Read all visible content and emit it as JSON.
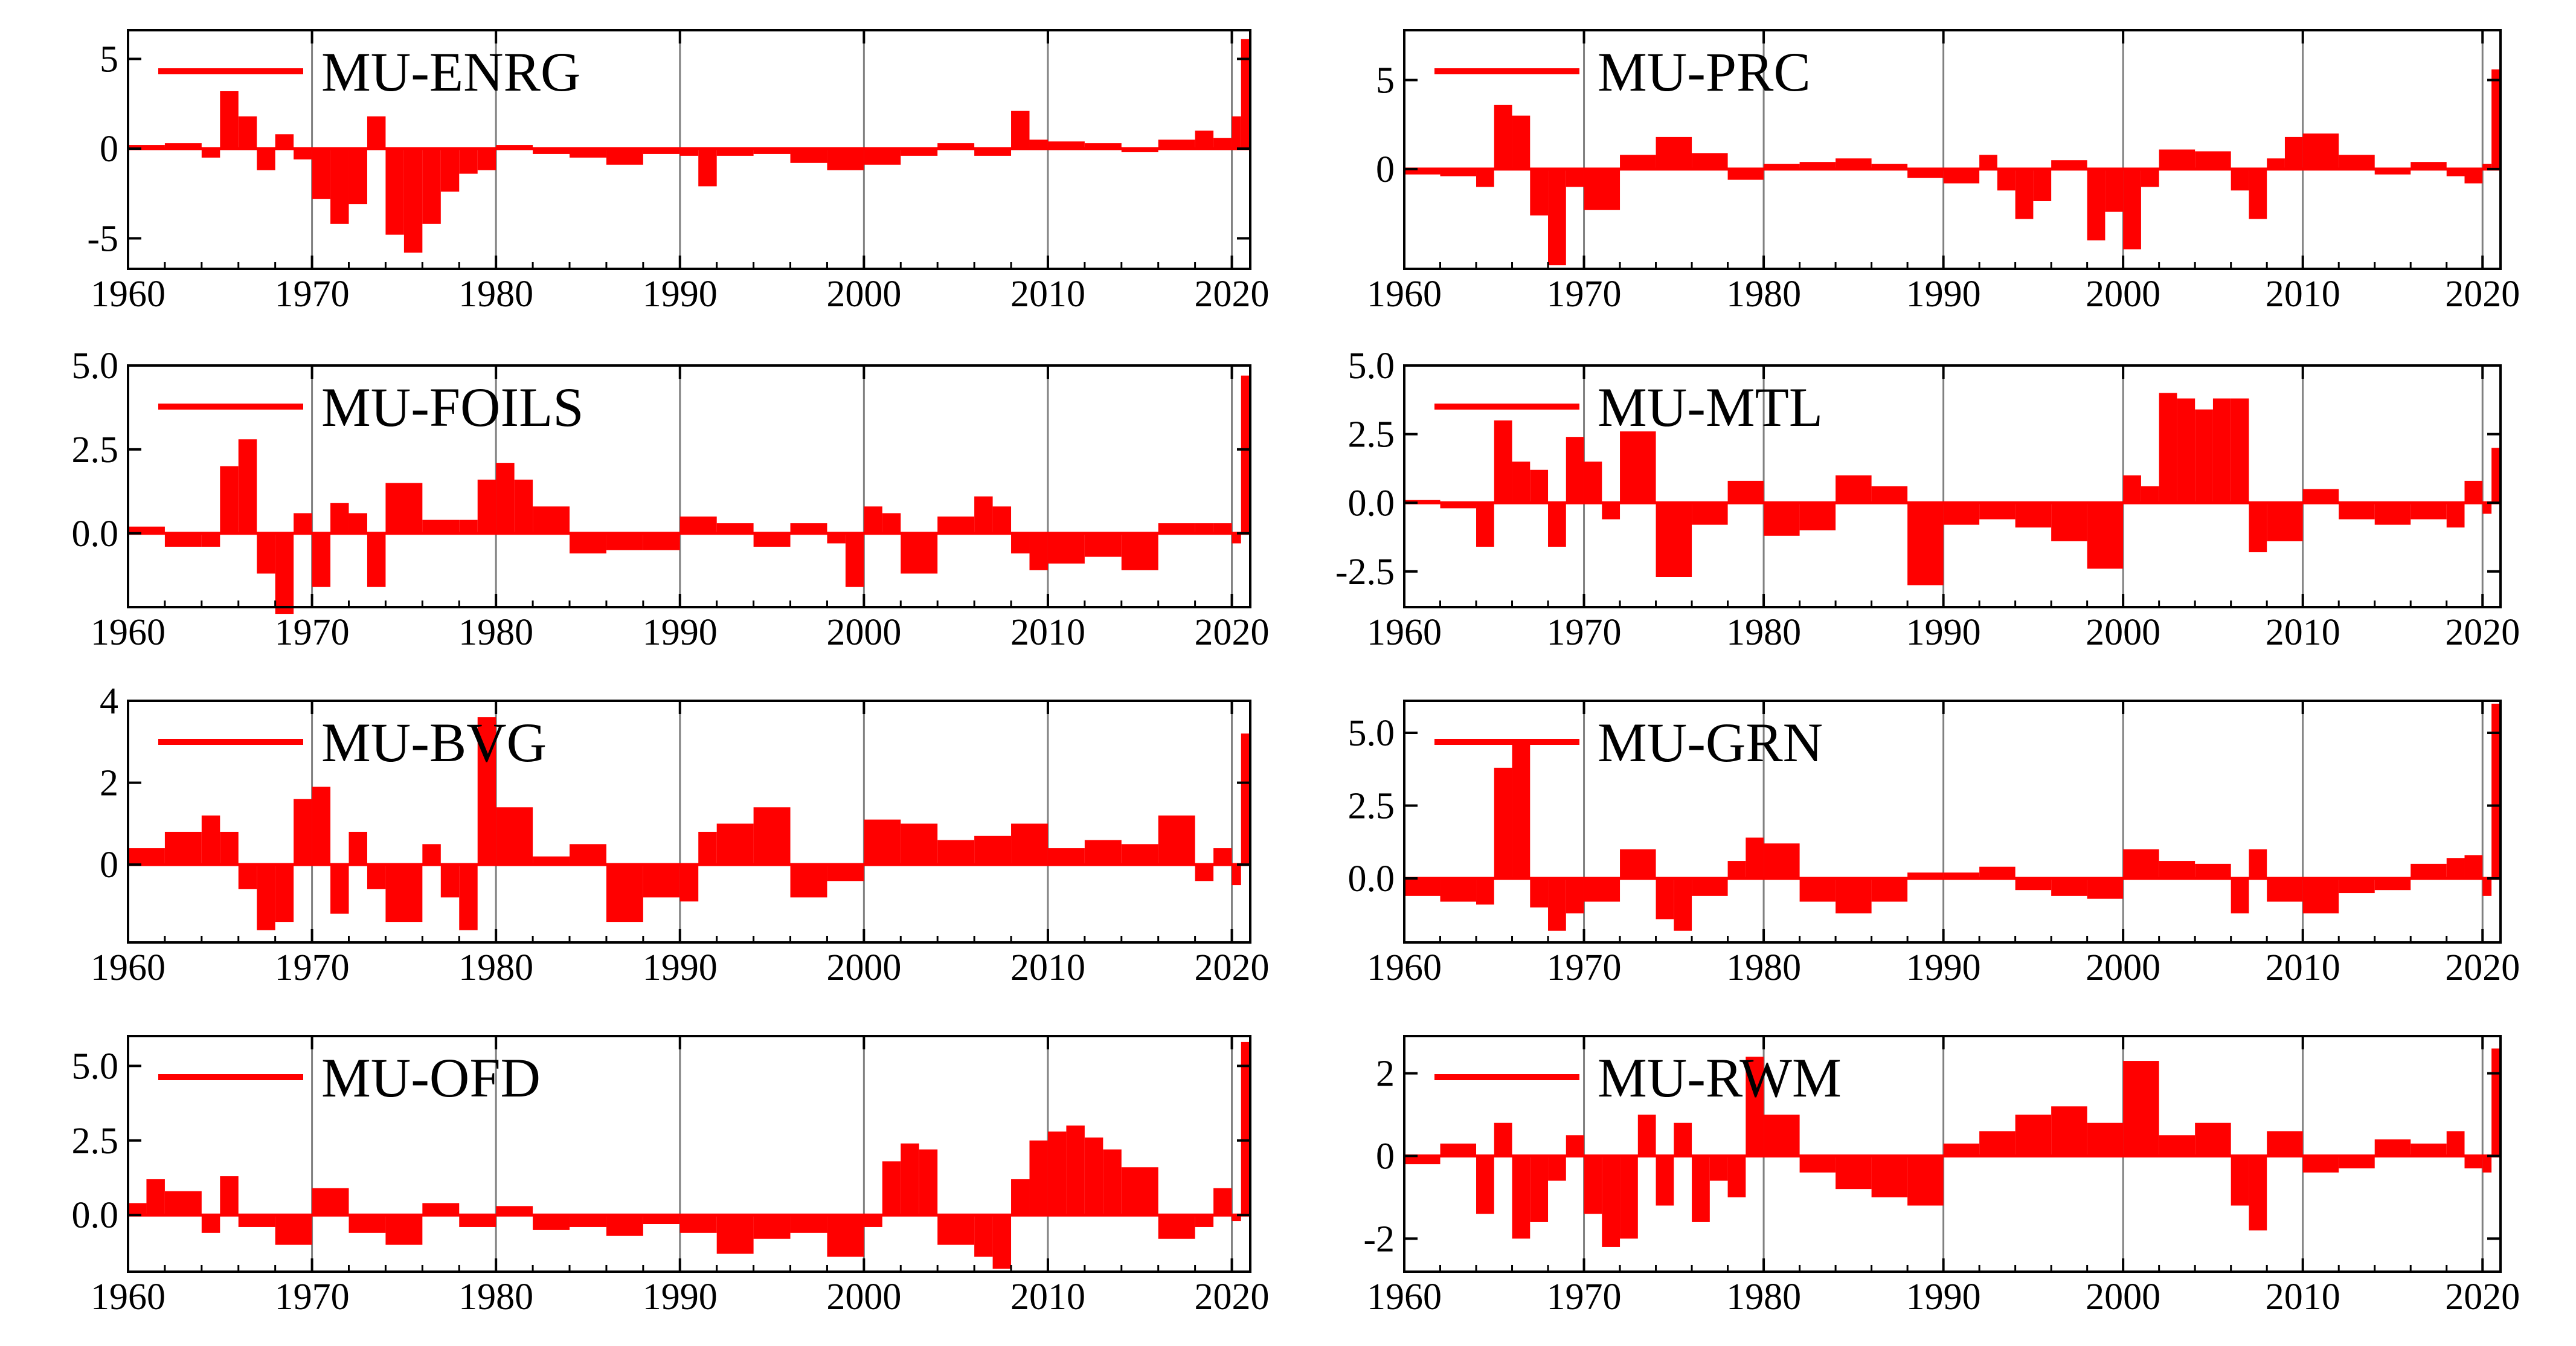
{
  "figure": {
    "description_title": "",
    "background": "#ffffff",
    "series_color": "#ff0000",
    "axis_color": "#000000",
    "gridline_color": "#808080"
  },
  "chart_data": [
    {
      "type": "bar",
      "name": "MU-ENRG",
      "legend": "MU-ENRG",
      "xlim": [
        1960,
        2021
      ],
      "ylim": [
        -6.7,
        6.6
      ],
      "xticks": [
        1960,
        1970,
        1980,
        1990,
        2000,
        2010,
        2020
      ],
      "xtick_labels": [
        "1960",
        "1970",
        "1980",
        "1990",
        "2000",
        "2010",
        "2020"
      ],
      "yticks": [
        5,
        0,
        -5
      ],
      "ytick_labels": [
        "5",
        "0",
        "-5"
      ],
      "gridlines_x": [
        1970,
        1980,
        1990,
        2000,
        2010,
        2020
      ],
      "x": [
        1960,
        1962,
        1964,
        1965,
        1966,
        1967,
        1968,
        1969,
        1970,
        1971,
        1972,
        1973,
        1974,
        1975,
        1976,
        1977,
        1978,
        1979,
        1980,
        1982,
        1984,
        1986,
        1988,
        1990,
        1991,
        1992,
        1994,
        1996,
        1998,
        2000,
        2002,
        2004,
        2006,
        2008,
        2009,
        2010,
        2012,
        2014,
        2016,
        2018,
        2019,
        2020,
        2020.5
      ],
      "values": [
        0.2,
        0.3,
        -0.5,
        3.2,
        1.8,
        -1.2,
        0.8,
        -0.6,
        -2.8,
        -4.2,
        -3.1,
        1.8,
        -4.8,
        -5.8,
        -4.2,
        -2.4,
        -1.4,
        -1.2,
        0.2,
        -0.3,
        -0.5,
        -0.9,
        -0.3,
        -0.4,
        -2.1,
        -0.4,
        -0.3,
        -0.8,
        -1.2,
        -0.9,
        -0.4,
        0.3,
        -0.4,
        2.1,
        0.5,
        0.4,
        0.3,
        -0.2,
        0.5,
        1.0,
        0.6,
        1.8,
        6.1
      ]
    },
    {
      "type": "bar",
      "name": "MU-PRC",
      "legend": "MU-PRC",
      "xlim": [
        1960,
        2021
      ],
      "ylim": [
        -5.6,
        7.8
      ],
      "xticks": [
        1960,
        1970,
        1980,
        1990,
        2000,
        2010,
        2020
      ],
      "xtick_labels": [
        "1960",
        "1970",
        "1980",
        "1990",
        "2000",
        "2010",
        "2020"
      ],
      "yticks": [
        5,
        0
      ],
      "ytick_labels": [
        "5",
        "0"
      ],
      "gridlines_x": [
        1970,
        1980,
        1990,
        2000,
        2010,
        2020
      ],
      "x": [
        1960,
        1962,
        1964,
        1965,
        1966,
        1967,
        1968,
        1969,
        1970,
        1972,
        1974,
        1976,
        1978,
        1980,
        1982,
        1984,
        1986,
        1988,
        1990,
        1992,
        1993,
        1994,
        1995,
        1996,
        1998,
        1999,
        2000,
        2001,
        2002,
        2004,
        2006,
        2007,
        2008,
        2009,
        2010,
        2012,
        2014,
        2016,
        2018,
        2019,
        2020,
        2020.5
      ],
      "values": [
        -0.3,
        -0.4,
        -1.0,
        3.6,
        3.0,
        -2.6,
        -5.4,
        -1.0,
        -2.3,
        0.8,
        1.8,
        0.9,
        -0.6,
        0.3,
        0.4,
        0.6,
        0.3,
        -0.5,
        -0.8,
        0.8,
        -1.2,
        -2.8,
        -1.8,
        0.5,
        -4.0,
        -2.4,
        -4.5,
        -1.0,
        1.1,
        1.0,
        -1.2,
        -2.8,
        0.6,
        1.8,
        2.0,
        0.8,
        -0.3,
        0.4,
        -0.4,
        -0.8,
        0.3,
        5.6
      ]
    },
    {
      "type": "bar",
      "name": "MU-FOILS",
      "legend": "MU-FOILS",
      "xlim": [
        1960,
        2021
      ],
      "ylim": [
        -2.2,
        5.0
      ],
      "xticks": [
        1960,
        1970,
        1980,
        1990,
        2000,
        2010,
        2020
      ],
      "xtick_labels": [
        "1960",
        "1970",
        "1980",
        "1990",
        "2000",
        "2010",
        "2020"
      ],
      "yticks": [
        5.0,
        2.5,
        0.0
      ],
      "ytick_labels": [
        "5.0",
        "2.5",
        "0.0"
      ],
      "gridlines_x": [
        1970,
        1980,
        1990,
        2000,
        2010,
        2020
      ],
      "x": [
        1960,
        1962,
        1964,
        1965,
        1966,
        1967,
        1968,
        1969,
        1970,
        1971,
        1972,
        1973,
        1974,
        1976,
        1978,
        1979,
        1980,
        1981,
        1982,
        1984,
        1986,
        1988,
        1990,
        1992,
        1994,
        1996,
        1998,
        1999,
        2000,
        2001,
        2002,
        2004,
        2006,
        2007,
        2008,
        2009,
        2010,
        2012,
        2014,
        2016,
        2018,
        2019,
        2020,
        2020.5
      ],
      "values": [
        0.2,
        -0.4,
        -0.4,
        2.0,
        2.8,
        -1.2,
        -2.4,
        0.6,
        -1.6,
        0.9,
        0.6,
        -1.6,
        1.5,
        0.4,
        0.4,
        1.6,
        2.1,
        1.6,
        0.8,
        -0.6,
        -0.5,
        -0.5,
        0.5,
        0.3,
        -0.4,
        0.3,
        -0.3,
        -1.6,
        0.8,
        0.6,
        -1.2,
        0.5,
        1.1,
        0.8,
        -0.6,
        -1.1,
        -0.9,
        -0.7,
        -1.1,
        0.3,
        0.3,
        0.3,
        -0.3,
        4.7
      ]
    },
    {
      "type": "bar",
      "name": "MU-MTL",
      "legend": "MU-MTL",
      "xlim": [
        1960,
        2021
      ],
      "ylim": [
        -3.8,
        5.0
      ],
      "xticks": [
        1960,
        1970,
        1980,
        1990,
        2000,
        2010,
        2020
      ],
      "xtick_labels": [
        "1960",
        "1970",
        "1980",
        "1990",
        "2000",
        "2010",
        "2020"
      ],
      "yticks": [
        5.0,
        2.5,
        0.0,
        -2.5
      ],
      "ytick_labels": [
        "5.0",
        "2.5",
        "0.0",
        "-2.5"
      ],
      "gridlines_x": [
        1970,
        1980,
        1990,
        2000,
        2010,
        2020
      ],
      "x": [
        1960,
        1962,
        1964,
        1965,
        1966,
        1967,
        1968,
        1969,
        1970,
        1971,
        1972,
        1974,
        1976,
        1978,
        1980,
        1982,
        1984,
        1986,
        1988,
        1990,
        1992,
        1994,
        1996,
        1998,
        2000,
        2001,
        2002,
        2003,
        2004,
        2005,
        2006,
        2007,
        2008,
        2010,
        2012,
        2014,
        2016,
        2018,
        2019,
        2020,
        2020.5
      ],
      "values": [
        0.1,
        -0.2,
        -1.6,
        3.0,
        1.5,
        1.2,
        -1.6,
        2.4,
        1.5,
        -0.6,
        2.6,
        -2.7,
        -0.8,
        0.8,
        -1.2,
        -1.0,
        1.0,
        0.6,
        -3.0,
        -0.8,
        -0.6,
        -0.9,
        -1.4,
        -2.4,
        1.0,
        0.6,
        4.0,
        3.8,
        3.4,
        3.8,
        3.8,
        -1.8,
        -1.4,
        0.5,
        -0.6,
        -0.8,
        -0.6,
        -0.9,
        0.8,
        -0.4,
        2.0
      ]
    },
    {
      "type": "bar",
      "name": "MU-BVG",
      "legend": "MU-BVG",
      "xlim": [
        1960,
        2021
      ],
      "ylim": [
        -1.9,
        4.0
      ],
      "xticks": [
        1960,
        1970,
        1980,
        1990,
        2000,
        2010,
        2020
      ],
      "xtick_labels": [
        "1960",
        "1970",
        "1980",
        "1990",
        "2000",
        "2010",
        "2020"
      ],
      "yticks": [
        4,
        2,
        0
      ],
      "ytick_labels": [
        "4",
        "2",
        "0"
      ],
      "gridlines_x": [
        1970,
        1980,
        1990,
        2000,
        2010,
        2020
      ],
      "x": [
        1960,
        1962,
        1964,
        1965,
        1966,
        1967,
        1968,
        1969,
        1970,
        1971,
        1972,
        1973,
        1974,
        1976,
        1977,
        1978,
        1979,
        1980,
        1982,
        1984,
        1986,
        1988,
        1990,
        1991,
        1992,
        1994,
        1996,
        1998,
        2000,
        2002,
        2004,
        2006,
        2008,
        2010,
        2012,
        2014,
        2016,
        2018,
        2019,
        2020,
        2020.5
      ],
      "values": [
        0.4,
        0.8,
        1.2,
        0.8,
        -0.6,
        -1.6,
        -1.4,
        1.6,
        1.9,
        -1.2,
        0.8,
        -0.6,
        -1.4,
        0.5,
        -0.8,
        -1.6,
        3.6,
        1.4,
        0.2,
        0.5,
        -1.4,
        -0.8,
        -0.9,
        0.8,
        1.0,
        1.4,
        -0.8,
        -0.4,
        1.1,
        1.0,
        0.6,
        0.7,
        1.0,
        0.4,
        0.6,
        0.5,
        1.2,
        -0.4,
        0.4,
        -0.5,
        3.2
      ]
    },
    {
      "type": "bar",
      "name": "MU-GRN",
      "legend": "MU-GRN",
      "xlim": [
        1960,
        2021
      ],
      "ylim": [
        -2.2,
        6.1
      ],
      "xticks": [
        1960,
        1970,
        1980,
        1990,
        2000,
        2010,
        2020
      ],
      "xtick_labels": [
        "1960",
        "1970",
        "1980",
        "1990",
        "2000",
        "2010",
        "2020"
      ],
      "yticks": [
        5.0,
        2.5,
        0.0
      ],
      "ytick_labels": [
        "5.0",
        "2.5",
        "0.0"
      ],
      "gridlines_x": [
        1970,
        1980,
        1990,
        2000,
        2010,
        2020
      ],
      "x": [
        1960,
        1962,
        1964,
        1965,
        1966,
        1967,
        1968,
        1969,
        1970,
        1972,
        1974,
        1975,
        1976,
        1978,
        1979,
        1980,
        1982,
        1984,
        1986,
        1988,
        1990,
        1992,
        1994,
        1996,
        1998,
        2000,
        2002,
        2004,
        2006,
        2007,
        2008,
        2010,
        2012,
        2014,
        2016,
        2018,
        2019,
        2020,
        2020.5
      ],
      "values": [
        -0.6,
        -0.8,
        -0.9,
        3.8,
        4.6,
        -1.0,
        -1.8,
        -1.2,
        -0.8,
        1.0,
        -1.4,
        -1.8,
        -0.6,
        0.6,
        1.4,
        1.2,
        -0.8,
        -1.2,
        -0.8,
        0.2,
        0.2,
        0.4,
        -0.4,
        -0.6,
        -0.7,
        1.0,
        0.6,
        0.5,
        -1.2,
        1.0,
        -0.8,
        -1.2,
        -0.5,
        -0.4,
        0.5,
        0.7,
        0.8,
        -0.6,
        6.0
      ]
    },
    {
      "type": "bar",
      "name": "MU-OFD",
      "legend": "MU-OFD",
      "xlim": [
        1960,
        2021
      ],
      "ylim": [
        -1.9,
        6.0
      ],
      "xticks": [
        1960,
        1970,
        1980,
        1990,
        2000,
        2010,
        2020
      ],
      "xtick_labels": [
        "1960",
        "1970",
        "1980",
        "1990",
        "2000",
        "2010",
        "2020"
      ],
      "yticks": [
        5.0,
        2.5,
        0.0
      ],
      "ytick_labels": [
        "5.0",
        "2.5",
        "0.0"
      ],
      "gridlines_x": [
        1970,
        1980,
        1990,
        2000,
        2010,
        2020
      ],
      "x": [
        1960,
        1961,
        1962,
        1964,
        1965,
        1966,
        1968,
        1970,
        1972,
        1974,
        1976,
        1978,
        1980,
        1982,
        1984,
        1986,
        1988,
        1990,
        1992,
        1994,
        1996,
        1998,
        2000,
        2001,
        2002,
        2003,
        2004,
        2006,
        2007,
        2008,
        2009,
        2010,
        2011,
        2012,
        2013,
        2014,
        2016,
        2018,
        2019,
        2020,
        2020.5
      ],
      "values": [
        0.4,
        1.2,
        0.8,
        -0.6,
        1.3,
        -0.4,
        -1.0,
        0.9,
        -0.6,
        -1.0,
        0.4,
        -0.4,
        0.3,
        -0.5,
        -0.4,
        -0.7,
        -0.3,
        -0.6,
        -1.3,
        -0.8,
        -0.6,
        -1.4,
        -0.4,
        1.8,
        2.4,
        2.2,
        -1.0,
        -1.4,
        -1.8,
        1.2,
        2.5,
        2.8,
        3.0,
        2.6,
        2.2,
        1.6,
        -0.8,
        -0.4,
        0.9,
        -0.2,
        5.8
      ]
    },
    {
      "type": "bar",
      "name": "MU-RWM",
      "legend": "MU-RWM",
      "xlim": [
        1960,
        2021
      ],
      "ylim": [
        -2.8,
        2.9
      ],
      "xticks": [
        1960,
        1970,
        1980,
        1990,
        2000,
        2010,
        2020
      ],
      "xtick_labels": [
        "1960",
        "1970",
        "1980",
        "1990",
        "2000",
        "2010",
        "2020"
      ],
      "yticks": [
        2,
        0,
        -2
      ],
      "ytick_labels": [
        "2",
        "0",
        "-2"
      ],
      "gridlines_x": [
        1970,
        1980,
        1990,
        2000,
        2010,
        2020
      ],
      "x": [
        1960,
        1962,
        1964,
        1965,
        1966,
        1967,
        1968,
        1969,
        1970,
        1971,
        1972,
        1973,
        1974,
        1975,
        1976,
        1977,
        1978,
        1979,
        1980,
        1982,
        1984,
        1986,
        1988,
        1990,
        1992,
        1994,
        1996,
        1998,
        2000,
        2002,
        2004,
        2006,
        2007,
        2008,
        2010,
        2012,
        2014,
        2016,
        2018,
        2019,
        2020,
        2020.5
      ],
      "values": [
        -0.2,
        0.3,
        -1.4,
        0.8,
        -2.0,
        -1.6,
        -0.6,
        0.5,
        -1.4,
        -2.2,
        -2.0,
        1.0,
        -1.2,
        0.8,
        -1.6,
        -0.6,
        -1.0,
        2.4,
        1.0,
        -0.4,
        -0.8,
        -1.0,
        -1.2,
        0.3,
        0.6,
        1.0,
        1.2,
        0.8,
        2.3,
        0.5,
        0.8,
        -1.2,
        -1.8,
        0.6,
        -0.4,
        -0.3,
        0.4,
        0.3,
        0.6,
        -0.3,
        -0.4,
        2.6
      ]
    }
  ]
}
